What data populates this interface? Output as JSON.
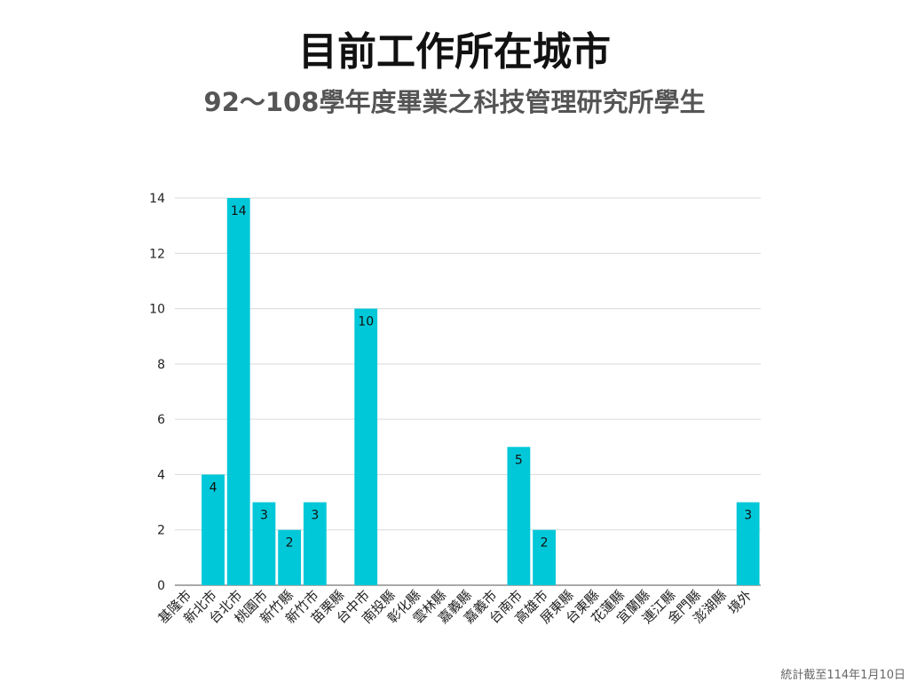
{
  "title": "目前工作所在城市",
  "subtitle": "92～108學年度畢業之科技管理研究所學生",
  "footnote": "統計截至114年1月10日",
  "chart_data": {
    "type": "bar",
    "title": "目前工作所在城市",
    "subtitle": "92～108學年度畢業之科技管理研究所學生",
    "xlabel": "",
    "ylabel": "",
    "ylim": [
      0,
      14
    ],
    "yticks": [
      0,
      2,
      4,
      6,
      8,
      10,
      12,
      14
    ],
    "grid": true,
    "bar_color": "#00c8d8",
    "categories": [
      "基隆市",
      "新北市",
      "台北市",
      "桃園市",
      "新竹縣",
      "新竹市",
      "苗栗縣",
      "台中市",
      "南投縣",
      "彰化縣",
      "雲林縣",
      "嘉義縣",
      "嘉義市",
      "台南市",
      "高雄市",
      "屏東縣",
      "台東縣",
      "花蓮縣",
      "宜蘭縣",
      "連江縣",
      "金門縣",
      "澎湖縣",
      "境外"
    ],
    "values": [
      0,
      4,
      14,
      3,
      2,
      3,
      0,
      10,
      0,
      0,
      0,
      0,
      0,
      5,
      2,
      0,
      0,
      0,
      0,
      0,
      0,
      0,
      3
    ]
  }
}
